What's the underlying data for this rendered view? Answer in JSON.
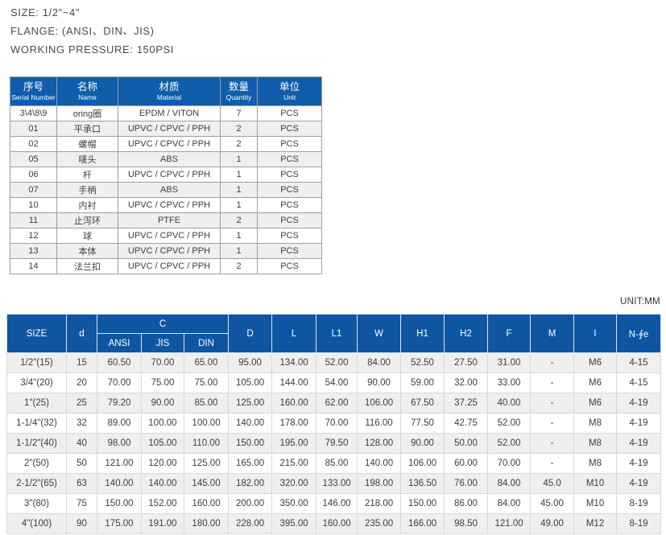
{
  "specs": {
    "size": "SIZE: 1/2\"~4\"",
    "flange": "FLANGE: (ANSI、DIN、JIS)",
    "working_pressure": "WORKING PRESSURE: 150PSI"
  },
  "colors": {
    "header1_bg": "#0f5dab",
    "header2_bg": "#0e56a2",
    "stripe": "#efefef"
  },
  "parts_table": {
    "headers": [
      {
        "zh": "序号",
        "en": "Serial Number"
      },
      {
        "zh": "名称",
        "en": "Name"
      },
      {
        "zh": "材质",
        "en": "Material"
      },
      {
        "zh": "数量",
        "en": "Quantity"
      },
      {
        "zh": "单位",
        "en": "Unit"
      }
    ],
    "rows": [
      [
        "3\\4\\8\\9",
        "oring圈",
        "EPDM / VITON",
        "7",
        "PCS"
      ],
      [
        "01",
        "平承口",
        "UPVC / CPVC / PPH",
        "2",
        "PCS"
      ],
      [
        "02",
        "螺帽",
        "UPVC / CPVC / PPH",
        "2",
        "PCS"
      ],
      [
        "05",
        "唛头",
        "ABS",
        "1",
        "PCS"
      ],
      [
        "06",
        "杆",
        "UPVC / CPVC / PPH",
        "1",
        "PCS"
      ],
      [
        "07",
        "手柄",
        "ABS",
        "1",
        "PCS"
      ],
      [
        "10",
        "内衬",
        "UPVC / CPVC / PPH",
        "1",
        "PCS"
      ],
      [
        "11",
        "止泻环",
        "PTFE",
        "2",
        "PCS"
      ],
      [
        "12",
        "球",
        "UPVC / CPVC / PPH",
        "1",
        "PCS"
      ],
      [
        "13",
        "本体",
        "UPVC / CPVC / PPH",
        "1",
        "PCS"
      ],
      [
        "14",
        "法兰扣",
        "UPVC / CPVC / PPH",
        "2",
        "PCS"
      ]
    ]
  },
  "unit_label": "UNIT:MM",
  "dimension_table": {
    "headers": {
      "size": "SIZE",
      "d": "d",
      "c_group": "C",
      "ansi": "ANSI",
      "jis": "JIS",
      "din": "DIN",
      "D": "D",
      "L": "L",
      "L1": "L1",
      "W": "W",
      "H1": "H1",
      "H2": "H2",
      "F": "F",
      "M": "M",
      "I": "I",
      "N": "N-∮e"
    },
    "rows": [
      [
        "1/2\"(15)",
        "15",
        "60.50",
        "70.00",
        "65.00",
        "95.00",
        "134.00",
        "52.00",
        "84.00",
        "52.50",
        "27.50",
        "31.00",
        "-",
        "M6",
        "4-15"
      ],
      [
        "3/4\"(20)",
        "20",
        "70.00",
        "75.00",
        "75.00",
        "105.00",
        "144.00",
        "54.00",
        "90.00",
        "59.00",
        "32.00",
        "33.00",
        "-",
        "M6",
        "4-15"
      ],
      [
        "1\"(25)",
        "25",
        "79.20",
        "90.00",
        "85.00",
        "125.00",
        "160.00",
        "62.00",
        "106.00",
        "67.50",
        "37.25",
        "40.00",
        "-",
        "M6",
        "4-19"
      ],
      [
        "1-1/4\"(32)",
        "32",
        "89.00",
        "100.00",
        "100.00",
        "140.00",
        "178.00",
        "70.00",
        "116.00",
        "77.50",
        "42.75",
        "52.00",
        "-",
        "M8",
        "4-19"
      ],
      [
        "1-1/2\"(40)",
        "40",
        "98.00",
        "105.00",
        "110.00",
        "150.00",
        "195.00",
        "79.50",
        "128.00",
        "90.00",
        "50.00",
        "52.00",
        "-",
        "M8",
        "4-19"
      ],
      [
        "2\"(50)",
        "50",
        "121.00",
        "120.00",
        "125.00",
        "165.00",
        "215.00",
        "85.00",
        "140.00",
        "106.00",
        "60.00",
        "70.00",
        "-",
        "M8",
        "4-19"
      ],
      [
        "2-1/2\"(65)",
        "63",
        "140.00",
        "140.00",
        "145.00",
        "182.00",
        "320.00",
        "133.00",
        "198.00",
        "136.50",
        "76.00",
        "84.00",
        "45.0",
        "M10",
        "4-19"
      ],
      [
        "3\"(80)",
        "75",
        "150.00",
        "152.00",
        "160.00",
        "200.00",
        "350.00",
        "146.00",
        "218.00",
        "150.00",
        "86.00",
        "84.00",
        "45.00",
        "M10",
        "8-19"
      ],
      [
        "4\"(100)",
        "90",
        "175.00",
        "191.00",
        "180.00",
        "228.00",
        "395.00",
        "160.00",
        "235.00",
        "166.00",
        "98.50",
        "121.00",
        "49.00",
        "M12",
        "8-19"
      ]
    ]
  }
}
